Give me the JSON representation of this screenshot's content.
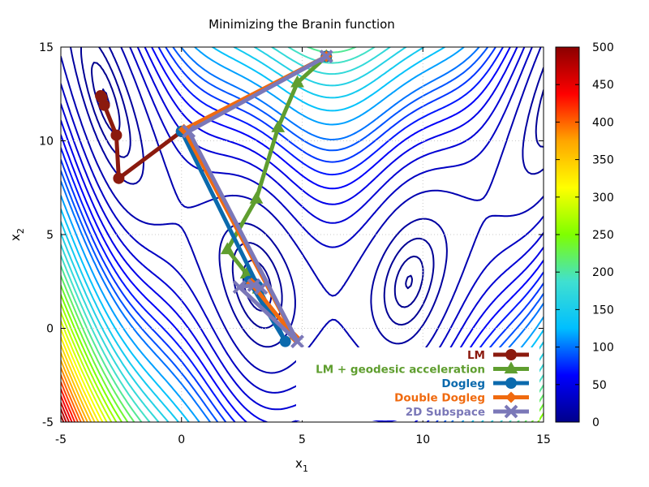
{
  "chart_data": {
    "type": "line",
    "title": "Minimizing the Branin function",
    "xlabel": "x",
    "xlabel_sub": "1",
    "ylabel": "x",
    "ylabel_sub": "2",
    "xlim": [
      -5,
      15
    ],
    "ylim": [
      -5,
      15
    ],
    "xticks": [
      -5,
      0,
      5,
      10,
      15
    ],
    "yticks": [
      -5,
      0,
      5,
      10,
      15
    ],
    "grid": true,
    "legend_position": "bottom-right",
    "colorbar": {
      "range": [
        0,
        500
      ],
      "ticks": [
        0,
        50,
        100,
        150,
        200,
        250,
        300,
        350,
        400,
        450,
        500
      ],
      "colormap": [
        "#00008b",
        "#0000ff",
        "#00bfff",
        "#40e0d0",
        "#7fff00",
        "#ffff00",
        "#ffa500",
        "#ff0000",
        "#8b0000"
      ]
    },
    "contour": {
      "function": "branin",
      "levels": [
        0.5,
        2,
        5,
        10,
        20,
        30,
        40,
        50,
        60,
        70,
        80,
        90,
        100,
        115,
        130,
        145,
        160,
        175,
        190,
        205,
        220,
        235,
        250,
        265,
        280,
        295,
        310,
        325,
        340,
        355,
        370,
        385,
        400,
        415,
        430,
        445,
        460,
        475,
        490
      ]
    },
    "series": [
      {
        "name": "LM",
        "color": "#8b1a0e",
        "marker": "circle",
        "points": [
          [
            6,
            14.5
          ],
          [
            0,
            10.5
          ],
          [
            -2.6,
            8.0
          ],
          [
            -2.7,
            10.3
          ],
          [
            -3.2,
            11.9
          ],
          [
            -3.3,
            12.3
          ],
          [
            -3.35,
            12.4
          ]
        ]
      },
      {
        "name": "LM + geodesic acceleration",
        "color": "#5f9e2f",
        "marker": "triangle",
        "points": [
          [
            6,
            14.5
          ],
          [
            4.8,
            13.1
          ],
          [
            4.0,
            10.7
          ],
          [
            3.1,
            6.9
          ],
          [
            1.9,
            4.2
          ],
          [
            2.7,
            2.9
          ],
          [
            3.2,
            2.1
          ]
        ]
      },
      {
        "name": "Dogleg",
        "color": "#0b6aad",
        "marker": "circle",
        "points": [
          [
            6,
            14.5
          ],
          [
            0,
            10.5
          ],
          [
            4.3,
            -0.7
          ],
          [
            2.8,
            2.5
          ],
          [
            3.15,
            2.25
          ]
        ]
      },
      {
        "name": "Double Dogleg",
        "color": "#f06a0f",
        "marker": "diamond",
        "points": [
          [
            6,
            14.5
          ],
          [
            0.1,
            10.6
          ],
          [
            4.7,
            -0.5
          ],
          [
            2.9,
            2.4
          ],
          [
            3.1,
            2.2
          ]
        ]
      },
      {
        "name": "2D Subspace",
        "color": "#7b78b8",
        "marker": "x",
        "points": [
          [
            6,
            14.5
          ],
          [
            0.3,
            10.5
          ],
          [
            4.8,
            -0.7
          ],
          [
            2.4,
            2.2
          ],
          [
            3.0,
            2.3
          ],
          [
            3.3,
            2.15
          ]
        ]
      }
    ]
  }
}
